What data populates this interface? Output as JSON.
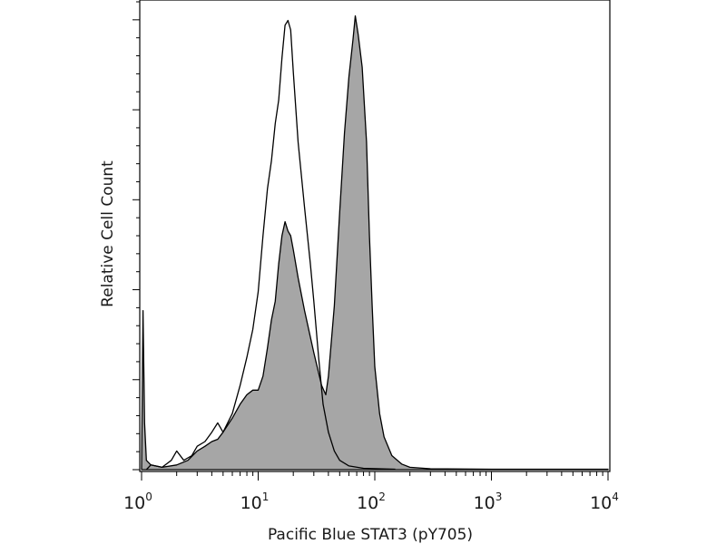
{
  "chart_data": {
    "type": "area",
    "title": "",
    "xlabel": "Pacific Blue STAT3 (pY705)",
    "ylabel": "Relative Cell Count",
    "x_scale": "log",
    "xlim": [
      1,
      10000
    ],
    "ylim": [
      0,
      1.0
    ],
    "x_ticks": [
      {
        "base": "10",
        "exp": "0",
        "value": 1
      },
      {
        "base": "10",
        "exp": "1",
        "value": 10
      },
      {
        "base": "10",
        "exp": "2",
        "value": 100
      },
      {
        "base": "10",
        "exp": "3",
        "value": 1000
      },
      {
        "base": "10",
        "exp": "4",
        "value": 10000
      }
    ],
    "y_ticks_labeled": false,
    "grid": false,
    "legend": "none",
    "series": [
      {
        "style": "filled",
        "fill": "#a6a6a6",
        "stroke": "#000000",
        "points": [
          [
            1.0,
            0.0
          ],
          [
            1.03,
            0.34
          ],
          [
            1.06,
            0.1
          ],
          [
            1.1,
            0.02
          ],
          [
            1.2,
            0.01
          ],
          [
            1.5,
            0.005
          ],
          [
            2.0,
            0.01
          ],
          [
            2.5,
            0.02
          ],
          [
            3.0,
            0.04
          ],
          [
            3.5,
            0.05
          ],
          [
            4.0,
            0.06
          ],
          [
            4.5,
            0.065
          ],
          [
            5.0,
            0.08
          ],
          [
            6.0,
            0.11
          ],
          [
            7.0,
            0.14
          ],
          [
            8.0,
            0.16
          ],
          [
            9.0,
            0.17
          ],
          [
            10.0,
            0.17
          ],
          [
            11.0,
            0.2
          ],
          [
            12.0,
            0.26
          ],
          [
            13.0,
            0.32
          ],
          [
            14.0,
            0.36
          ],
          [
            15.0,
            0.44
          ],
          [
            16.0,
            0.5
          ],
          [
            17.0,
            0.53
          ],
          [
            18.0,
            0.51
          ],
          [
            19.0,
            0.5
          ],
          [
            20.0,
            0.47
          ],
          [
            22.0,
            0.41
          ],
          [
            25.0,
            0.34
          ],
          [
            30.0,
            0.25
          ],
          [
            35.0,
            0.18
          ],
          [
            38.0,
            0.16
          ],
          [
            40.0,
            0.2
          ],
          [
            45.0,
            0.35
          ],
          [
            50.0,
            0.55
          ],
          [
            55.0,
            0.72
          ],
          [
            60.0,
            0.84
          ],
          [
            65.0,
            0.92
          ],
          [
            68.0,
            0.97
          ],
          [
            72.0,
            0.93
          ],
          [
            78.0,
            0.86
          ],
          [
            85.0,
            0.7
          ],
          [
            90.0,
            0.5
          ],
          [
            95.0,
            0.35
          ],
          [
            100.0,
            0.22
          ],
          [
            110.0,
            0.12
          ],
          [
            120.0,
            0.07
          ],
          [
            140.0,
            0.03
          ],
          [
            170.0,
            0.012
          ],
          [
            200.0,
            0.005
          ],
          [
            300.0,
            0.002
          ],
          [
            1000.0,
            0.001
          ],
          [
            10000.0,
            0.001
          ]
        ]
      },
      {
        "style": "outline",
        "fill": "none",
        "stroke": "#000000",
        "points": [
          [
            1.1,
            0.0
          ],
          [
            1.2,
            0.01
          ],
          [
            1.5,
            0.005
          ],
          [
            1.8,
            0.02
          ],
          [
            2.0,
            0.04
          ],
          [
            2.3,
            0.02
          ],
          [
            2.7,
            0.03
          ],
          [
            3.0,
            0.05
          ],
          [
            3.5,
            0.06
          ],
          [
            4.0,
            0.08
          ],
          [
            4.5,
            0.1
          ],
          [
            5.0,
            0.08
          ],
          [
            6.0,
            0.12
          ],
          [
            7.0,
            0.18
          ],
          [
            8.0,
            0.24
          ],
          [
            9.0,
            0.3
          ],
          [
            10.0,
            0.38
          ],
          [
            11.0,
            0.5
          ],
          [
            12.0,
            0.6
          ],
          [
            13.0,
            0.66
          ],
          [
            14.0,
            0.74
          ],
          [
            15.0,
            0.79
          ],
          [
            16.0,
            0.88
          ],
          [
            17.0,
            0.95
          ],
          [
            18.0,
            0.96
          ],
          [
            19.0,
            0.94
          ],
          [
            20.0,
            0.85
          ],
          [
            22.0,
            0.7
          ],
          [
            25.0,
            0.56
          ],
          [
            28.0,
            0.44
          ],
          [
            30.0,
            0.36
          ],
          [
            33.0,
            0.24
          ],
          [
            36.0,
            0.14
          ],
          [
            40.0,
            0.08
          ],
          [
            45.0,
            0.04
          ],
          [
            50.0,
            0.02
          ],
          [
            60.0,
            0.008
          ],
          [
            80.0,
            0.003
          ],
          [
            150.0,
            0.001
          ]
        ]
      }
    ]
  }
}
